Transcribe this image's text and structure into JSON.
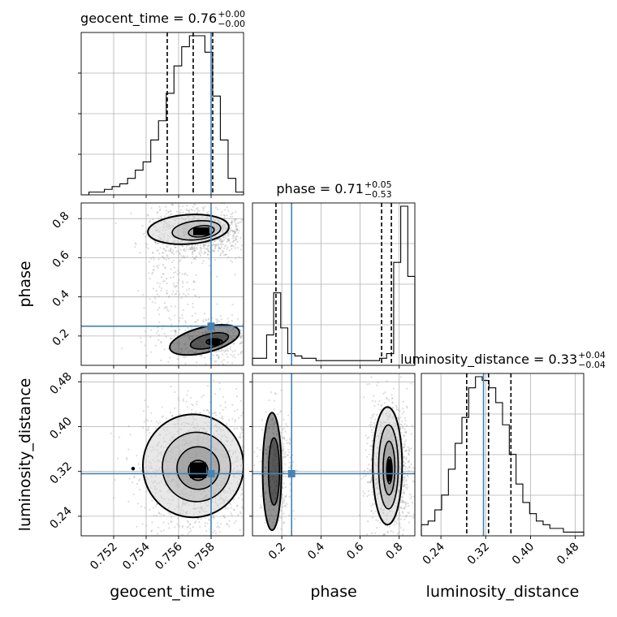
{
  "chart_data": {
    "type": "corner",
    "truth_color": "#4682b4",
    "parameters": [
      {
        "name": "geocent_time",
        "xlabel": "geocent_time",
        "title_main": "geocent_time = 0.76",
        "title_sup": "+0.00",
        "title_sub": "−0.00",
        "range": [
          0.75,
          0.76
        ],
        "ticks": [
          0.752,
          0.754,
          0.756,
          0.758
        ],
        "tick_labels": [
          "0.752",
          "0.754",
          "0.756",
          "0.758"
        ],
        "truth": 0.758,
        "quantiles": [
          0.7553,
          0.7569,
          0.7581
        ],
        "hist_edges": [
          0.75,
          0.76
        ],
        "hist": [
          0,
          1,
          1,
          2,
          3,
          4,
          6,
          9,
          12,
          20,
          27,
          37,
          47,
          54,
          58,
          58,
          52,
          36,
          20,
          6,
          1
        ]
      },
      {
        "name": "phase",
        "xlabel": "phase",
        "ylabel": "phase",
        "title_main": "phase = 0.71",
        "title_sup": "+0.05",
        "title_sub": "−0.53",
        "range": [
          0.05,
          0.88
        ],
        "ticks": [
          0.2,
          0.4,
          0.6,
          0.8
        ],
        "tick_labels": [
          "0.2",
          "0.4",
          "0.6",
          "0.8"
        ],
        "truth": 0.25,
        "quantiles": [
          0.17,
          0.71,
          0.76
        ],
        "hist": [
          3,
          3,
          13,
          31,
          16,
          5,
          4,
          3,
          3,
          2,
          2,
          2,
          2,
          2,
          2,
          2,
          2,
          2,
          3,
          5,
          44,
          68,
          38
        ]
      },
      {
        "name": "luminosity_distance",
        "xlabel": "luminosity_distance",
        "ylabel": "luminosity_distance",
        "title_main": "luminosity_distance = 0.33",
        "title_sup": "+0.04",
        "title_sub": "−0.04",
        "range": [
          0.205,
          0.495
        ],
        "ticks": [
          0.24,
          0.32,
          0.4,
          0.48
        ],
        "tick_labels": [
          "0.24",
          "0.32",
          "0.40",
          "0.48"
        ],
        "truth": 0.316,
        "quantiles": [
          0.286,
          0.325,
          0.365
        ],
        "hist": [
          3,
          4,
          7,
          11,
          18,
          25,
          32,
          40,
          43,
          42,
          40,
          36,
          30,
          22,
          14,
          9,
          6,
          4,
          3,
          2,
          2,
          1,
          1,
          1
        ]
      }
    ],
    "pairs": [
      {
        "x": "geocent_time",
        "y": "phase",
        "modes": [
          {
            "cx": 0.7573,
            "cy": 0.73,
            "sx": 0.0011,
            "sy": 0.05,
            "weight": 0.62
          },
          {
            "cx": 0.7582,
            "cy": 0.17,
            "sx": 0.0009,
            "sy": 0.045,
            "weight": 0.22
          },
          {
            "cx": 0.7555,
            "cy": 0.45,
            "sx": 0.0008,
            "sy": 0.17,
            "weight": 0.16
          }
        ],
        "contours": [
          {
            "cx": 0.7566,
            "cy": 0.745,
            "rx": 0.0025,
            "ry": 0.075,
            "rot": -4,
            "width": 2
          },
          {
            "cx": 0.7571,
            "cy": 0.74,
            "rx": 0.0015,
            "ry": 0.048,
            "rot": -6,
            "width": 1.6
          },
          {
            "cx": 0.7574,
            "cy": 0.735,
            "rx": 0.0008,
            "ry": 0.028,
            "rot": -8,
            "width": 1.6
          },
          {
            "cx": 0.7574,
            "cy": 0.735,
            "rx": 0.0004,
            "ry": 0.015,
            "rot": 0,
            "width": 1.6
          },
          {
            "cx": 0.7576,
            "cy": 0.18,
            "rx": 0.0022,
            "ry": 0.065,
            "rot": -14,
            "width": 2
          },
          {
            "cx": 0.7579,
            "cy": 0.175,
            "rx": 0.0012,
            "ry": 0.035,
            "rot": -14,
            "width": 1.6
          },
          {
            "cx": 0.7582,
            "cy": 0.17,
            "rx": 0.0005,
            "ry": 0.016,
            "rot": 0,
            "width": 1.6
          }
        ],
        "cores": [
          {
            "cx": 0.7574,
            "cy": 0.735,
            "rx": 0.0005,
            "ry": 0.02
          },
          {
            "cx": 0.7582,
            "cy": 0.168,
            "rx": 0.00035,
            "ry": 0.014
          }
        ]
      },
      {
        "x": "geocent_time",
        "y": "luminosity_distance",
        "modes": [
          {
            "cx": 0.7572,
            "cy": 0.325,
            "sx": 0.0013,
            "sy": 0.04,
            "weight": 1.0
          }
        ],
        "contours": [
          {
            "cx": 0.7569,
            "cy": 0.33,
            "rx": 0.0031,
            "ry": 0.092,
            "rot": 0,
            "width": 2
          },
          {
            "cx": 0.7571,
            "cy": 0.328,
            "rx": 0.0021,
            "ry": 0.062,
            "rot": 0,
            "width": 1.6
          },
          {
            "cx": 0.7572,
            "cy": 0.326,
            "rx": 0.0013,
            "ry": 0.038,
            "rot": 0,
            "width": 1.6
          },
          {
            "cx": 0.7572,
            "cy": 0.322,
            "rx": 0.0006,
            "ry": 0.018,
            "rot": 0,
            "width": 1.6
          }
        ],
        "cores": [
          {
            "cx": 0.7572,
            "cy": 0.322,
            "rx": 0.0005,
            "ry": 0.014
          }
        ],
        "outlier": {
          "x": 0.7532,
          "y": 0.325
        }
      },
      {
        "x": "phase",
        "y": "luminosity_distance",
        "modes": [
          {
            "cx": 0.75,
            "cy": 0.325,
            "sx": 0.04,
            "sy": 0.042,
            "weight": 0.75
          },
          {
            "cx": 0.17,
            "cy": 0.322,
            "sx": 0.03,
            "sy": 0.042,
            "weight": 0.25
          }
        ],
        "contours": [
          {
            "cx": 0.74,
            "cy": 0.33,
            "rx": 0.075,
            "ry": 0.105,
            "rot": 0,
            "width": 2
          },
          {
            "cx": 0.745,
            "cy": 0.328,
            "rx": 0.05,
            "ry": 0.075,
            "rot": 0,
            "width": 1.6
          },
          {
            "cx": 0.748,
            "cy": 0.326,
            "rx": 0.03,
            "ry": 0.048,
            "rot": 0,
            "width": 1.6
          },
          {
            "cx": 0.75,
            "cy": 0.322,
            "rx": 0.014,
            "ry": 0.024,
            "rot": 0,
            "width": 1.6
          },
          {
            "cx": 0.15,
            "cy": 0.32,
            "rx": 0.048,
            "ry": 0.105,
            "rot": 0,
            "width": 2
          },
          {
            "cx": 0.16,
            "cy": 0.32,
            "rx": 0.028,
            "ry": 0.06,
            "rot": 0,
            "width": 1.6
          }
        ],
        "cores": [
          {
            "cx": 0.75,
            "cy": 0.322,
            "rx": 0.011,
            "ry": 0.02
          }
        ]
      }
    ]
  }
}
